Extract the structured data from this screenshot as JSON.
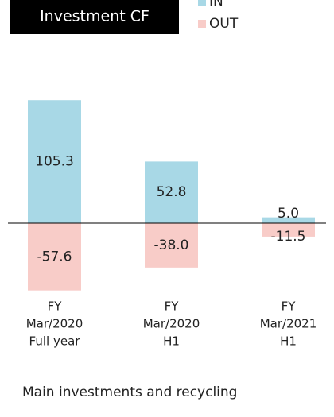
{
  "chart_data": {
    "type": "bar",
    "title": "Investment CF",
    "categories": [
      [
        "FY",
        "Mar/2020",
        "Full year"
      ],
      [
        "FY",
        "Mar/2020",
        "H1"
      ],
      [
        "FY",
        "Mar/2021",
        "H1"
      ]
    ],
    "series": [
      {
        "name": "IN",
        "color": "#a8d8e6",
        "values": [
          105.3,
          52.8,
          5.0
        ],
        "value_labels": [
          "105.3",
          "52.8",
          "5.0"
        ]
      },
      {
        "name": "OUT",
        "color": "#f8ccc8",
        "values": [
          -57.6,
          -38.0,
          -11.5
        ],
        "value_labels": [
          "-57.6",
          "-38.0",
          "-11.5"
        ]
      }
    ],
    "footer": "Main investments and recycling"
  }
}
